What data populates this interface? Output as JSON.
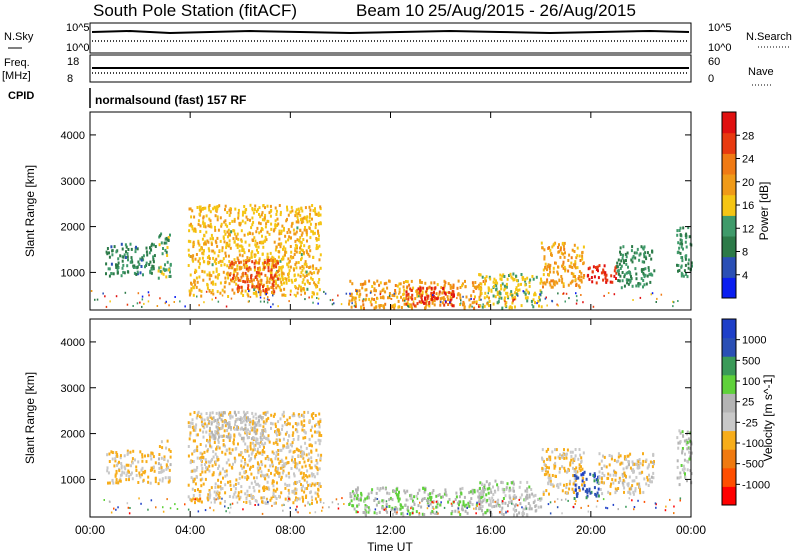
{
  "header": {
    "station": "South Pole Station (fitACF)",
    "beam": "Beam 10",
    "date_range": "25/Aug/2015 - 26/Aug/2015"
  },
  "top_panels": {
    "nsky_label": "N.Sky",
    "nsky_ticks": [
      "10^5",
      "10^0"
    ],
    "nsearch_label": "N.Search",
    "nsearch_ticks": [
      "10^5",
      "10^0"
    ],
    "freq_label": "Freq.",
    "freq_unit": "[MHz]",
    "freq_ticks": [
      "18",
      "8"
    ],
    "nave_label": "Nave",
    "nave_ticks": [
      "60",
      "0"
    ],
    "cpid_label": "CPID",
    "cpid_text": "normalsound (fast) 157 RF"
  },
  "colors": {
    "power": [
      "#0a1ef0",
      "#2a4fb5",
      "#2c7a48",
      "#3f9a6a",
      "#f5c514",
      "#f09a18",
      "#f07a14",
      "#e83a10",
      "#e01010"
    ],
    "velocity": [
      "#ff0000",
      "#ff4e00",
      "#f07a10",
      "#f7ad1a",
      "#c8c8c8",
      "#b4b4b4",
      "#5fd13a",
      "#3a9a58",
      "#2a4fb5",
      "#1e3fc8"
    ]
  },
  "chart_data": [
    {
      "type": "heatmap",
      "title": "",
      "ylabel": "Slant Range [km]",
      "xlabel": "",
      "ylim": [
        180,
        4500
      ],
      "yticks": [
        "1000",
        "2000",
        "3000",
        "4000"
      ],
      "xlim": [
        0,
        24
      ],
      "colorbar": {
        "label": "Power [dB]",
        "ticks": [
          "4",
          "8",
          "12",
          "16",
          "20",
          "24",
          "28"
        ],
        "range": [
          0,
          30
        ]
      },
      "blobs": [
        {
          "t0": 0.6,
          "t1": 2.6,
          "r0": 950,
          "r1": 1650,
          "value": 9
        },
        {
          "t0": 2.7,
          "t1": 3.2,
          "r0": 900,
          "r1": 1900,
          "value": 12
        },
        {
          "t0": 3.9,
          "t1": 9.2,
          "r0": 500,
          "r1": 2500,
          "value": 16
        },
        {
          "t0": 5.5,
          "t1": 7.5,
          "r0": 600,
          "r1": 1300,
          "value": 24
        },
        {
          "t0": 10.3,
          "t1": 15.9,
          "r0": 250,
          "r1": 850,
          "value": 18
        },
        {
          "t0": 12.5,
          "t1": 14.5,
          "r0": 300,
          "r1": 700,
          "value": 26
        },
        {
          "t0": 15.5,
          "t1": 18.0,
          "r0": 250,
          "r1": 1000,
          "value": 14
        },
        {
          "t0": 18.0,
          "t1": 19.7,
          "r0": 700,
          "r1": 1700,
          "value": 18
        },
        {
          "t0": 19.7,
          "t1": 21.0,
          "r0": 800,
          "r1": 1200,
          "value": 26
        },
        {
          "t0": 21.0,
          "t1": 22.5,
          "r0": 700,
          "r1": 1600,
          "value": 10
        },
        {
          "t0": 23.4,
          "t1": 24.0,
          "r0": 900,
          "r1": 2100,
          "value": 10
        }
      ]
    },
    {
      "type": "heatmap",
      "title": "",
      "ylabel": "Slant Range [km]",
      "xlabel": "Time UT",
      "ylim": [
        180,
        4500
      ],
      "yticks": [
        "1000",
        "2000",
        "3000",
        "4000"
      ],
      "xlim": [
        0,
        24
      ],
      "xticks": [
        "00:00",
        "04:00",
        "08:00",
        "12:00",
        "16:00",
        "20:00",
        "00:00"
      ],
      "colorbar": {
        "label": "Velocity [m s^-1]",
        "ticks": [
          "-1000",
          "-500",
          "-100",
          "-25",
          "25",
          "100",
          "500",
          "1000"
        ],
        "range": [
          -1000,
          1000
        ]
      },
      "blobs": [
        {
          "t0": 0.6,
          "t1": 2.6,
          "r0": 950,
          "r1": 1650,
          "value": -200
        },
        {
          "t0": 2.7,
          "t1": 3.2,
          "r0": 900,
          "r1": 1900,
          "value": -150
        },
        {
          "t0": 3.9,
          "t1": 9.2,
          "r0": 500,
          "r1": 2500,
          "value": -200
        },
        {
          "t0": 4.6,
          "t1": 7.0,
          "r0": 1900,
          "r1": 2500,
          "value": 10
        },
        {
          "t0": 10.3,
          "t1": 15.9,
          "r0": 250,
          "r1": 850,
          "value": 150
        },
        {
          "t0": 15.5,
          "t1": 18.0,
          "r0": 250,
          "r1": 1000,
          "value": 60
        },
        {
          "t0": 18.0,
          "t1": 19.7,
          "r0": 700,
          "r1": 1700,
          "value": -200
        },
        {
          "t0": 19.3,
          "t1": 20.3,
          "r0": 600,
          "r1": 1200,
          "value": 700
        },
        {
          "t0": 20.3,
          "t1": 22.5,
          "r0": 700,
          "r1": 1600,
          "value": -150
        },
        {
          "t0": 23.4,
          "t1": 24.0,
          "r0": 900,
          "r1": 2100,
          "value": 80
        }
      ]
    }
  ]
}
